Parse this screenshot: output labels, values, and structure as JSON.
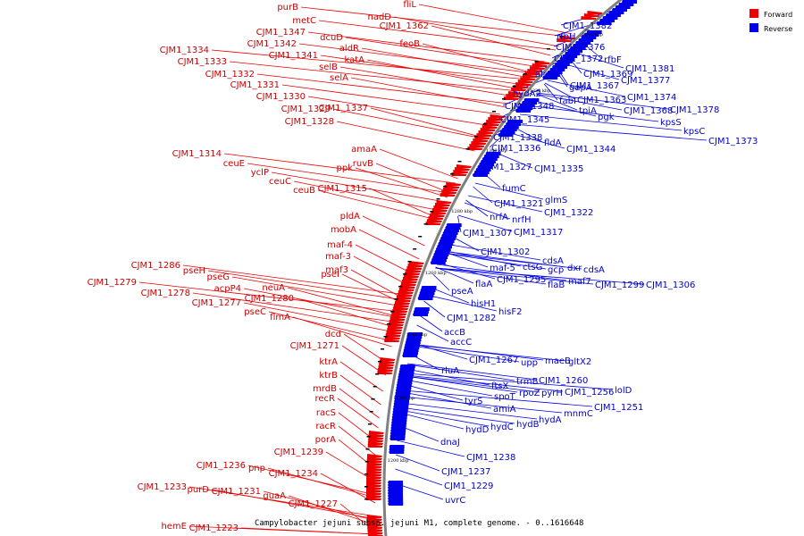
{
  "caption": "Campylobacter jejuni subsp. jejuni M1, complete genome. - 0..1616648",
  "legend": [
    {
      "label": "Forward",
      "color": "#ee0000"
    },
    {
      "label": "Reverse",
      "color": "#0000ee"
    }
  ],
  "colors": {
    "forward": "#ee0000",
    "reverse": "#0000ee",
    "backbone": "#808080"
  },
  "kbp_labels": [
    "1340 kbp",
    "1320 kbp",
    "1300 kbp",
    "1280 kbp",
    "1260 kbp",
    "1240 kbp",
    "1220 kbp",
    "1200 kbp"
  ],
  "forward_genes": [
    "fliL",
    "nadD",
    "purB",
    "metC",
    "CJM1_1362",
    "CJM1_1347",
    "dcuD",
    "feoB",
    "CJM1_1342",
    "aldR",
    "CJM1_1341",
    "katA",
    "selB",
    "selA",
    "CJM1_1334",
    "CJM1_1333",
    "CJM1_1332",
    "CJM1_1331",
    "CJM1_1330",
    "CJM1_1337",
    "CJM1_1329",
    "CJM1_1328",
    "amaA",
    "CJM1_1314",
    "ruvB",
    "ceuE",
    "ppk",
    "yclP",
    "ceuC",
    "ceuB",
    "CJM1_1315",
    "pldA",
    "mobA",
    "maf-4",
    "maf-3",
    "maf3",
    "pseI",
    "CJM1_1286",
    "pseH",
    "pseG",
    "CJM1_1279",
    "neuA",
    "acpP4",
    "CJM1_1278",
    "CJM1_1280",
    "CJM1_1277",
    "pseC",
    "flmA",
    "dcd",
    "CJM1_1271",
    "ktrA",
    "ktrB",
    "mrdB",
    "recR",
    "racS",
    "racR",
    "porA",
    "CJM1_1239",
    "CJM1_1236",
    "pnp",
    "CJM1_1234",
    "CJM1_1233",
    "purD",
    "CJM1_1231",
    "guaA",
    "CJM1_1227",
    "hemE",
    "CJM1_1223"
  ],
  "reverse_genes": [
    "CJM1_1382",
    "rfbH",
    "CJM1_1376",
    "CJM1_1372",
    "rfbF",
    "CJM1_1381",
    "algC",
    "CJM1_1369",
    "CJM1_1377",
    "gapA",
    "CJM1_1367",
    "hydA2",
    "fabI",
    "CJM1_1363",
    "CJM1_1374",
    "CJM1_1348",
    "tpiA",
    "CJM1_1368",
    "CJM1_1378",
    "pgk",
    "CJM1_1345",
    "kpsS",
    "kpsC",
    "CJM1_1338",
    "fldA",
    "CJM1_1373",
    "CJM1_1336",
    "CJM1_1344",
    "CJM1_1327",
    "CJM1_1335",
    "fumC",
    "glmS",
    "CJM1_1321",
    "CJM1_1322",
    "nrfA",
    "nrfH",
    "CJM1_1307",
    "CJM1_1317",
    "CJM1_1302",
    "cdsA",
    "maf-5",
    "ctsG",
    "gcp",
    "dxr",
    "cdsA",
    "CJM1_1295",
    "flaA",
    "flaB",
    "maf7",
    "CJM1_1299",
    "CJM1_1306",
    "pseA",
    "hisH1",
    "hisF2",
    "CJM1_1282",
    "accB",
    "accC",
    "CJM1_1267",
    "upp",
    "maeB",
    "gltX2",
    "rluA",
    "trmB",
    "CJM1_1260",
    "ftsX",
    "spoT",
    "rpoZ",
    "pyrH",
    "CJM1_1256",
    "lolD",
    "tyrS",
    "amiA",
    "CJM1_1251",
    "mnmC",
    "hydA",
    "hydB",
    "hydD",
    "hydC",
    "dnaJ",
    "CJM1_1238",
    "CJM1_1237",
    "CJM1_1229",
    "uvrC"
  ]
}
